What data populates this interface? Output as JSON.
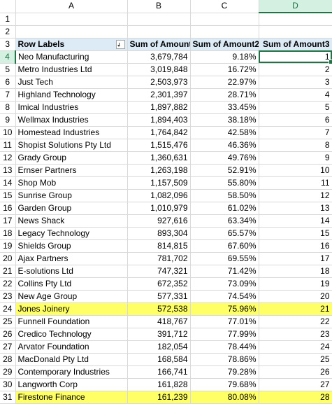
{
  "columns": [
    "A",
    "B",
    "C",
    "D"
  ],
  "selected_column": "D",
  "selected_row": 4,
  "header_row": {
    "row": 3,
    "labels": [
      "Row Labels",
      "Sum of Amount",
      "Sum of Amount2",
      "Sum of Amount3"
    ]
  },
  "rows": [
    {
      "row": 1,
      "a": "",
      "b": "",
      "c": "",
      "d": ""
    },
    {
      "row": 2,
      "a": "",
      "b": "",
      "c": "",
      "d": ""
    },
    {
      "row": 4,
      "a": "Neo Manufacturing",
      "b": "3,679,784",
      "c": "9.18%",
      "d": "1"
    },
    {
      "row": 5,
      "a": "Metro Industries Ltd",
      "b": "3,019,848",
      "c": "16.72%",
      "d": "2"
    },
    {
      "row": 6,
      "a": "Just Tech",
      "b": "2,503,973",
      "c": "22.97%",
      "d": "3"
    },
    {
      "row": 7,
      "a": "Highland Technology",
      "b": "2,301,397",
      "c": "28.71%",
      "d": "4"
    },
    {
      "row": 8,
      "a": "Imical Industries",
      "b": "1,897,882",
      "c": "33.45%",
      "d": "5"
    },
    {
      "row": 9,
      "a": "Wellmax Industries",
      "b": "1,894,403",
      "c": "38.18%",
      "d": "6"
    },
    {
      "row": 10,
      "a": "Homestead Industries",
      "b": "1,764,842",
      "c": "42.58%",
      "d": "7"
    },
    {
      "row": 11,
      "a": "Shopist Solutions Pty Ltd",
      "b": "1,515,476",
      "c": "46.36%",
      "d": "8"
    },
    {
      "row": 12,
      "a": "Grady Group",
      "b": "1,360,631",
      "c": "49.76%",
      "d": "9"
    },
    {
      "row": 13,
      "a": "Ernser Partners",
      "b": "1,263,198",
      "c": "52.91%",
      "d": "10"
    },
    {
      "row": 14,
      "a": "Shop Mob",
      "b": "1,157,509",
      "c": "55.80%",
      "d": "11"
    },
    {
      "row": 15,
      "a": "Sunrise Group",
      "b": "1,082,096",
      "c": "58.50%",
      "d": "12"
    },
    {
      "row": 16,
      "a": "Garden Group",
      "b": "1,010,979",
      "c": "61.02%",
      "d": "13"
    },
    {
      "row": 17,
      "a": "News Shack",
      "b": "927,616",
      "c": "63.34%",
      "d": "14"
    },
    {
      "row": 18,
      "a": "Legacy Technology",
      "b": "893,304",
      "c": "65.57%",
      "d": "15"
    },
    {
      "row": 19,
      "a": "Shields Group",
      "b": "814,815",
      "c": "67.60%",
      "d": "16"
    },
    {
      "row": 20,
      "a": "Ajax Partners",
      "b": "781,702",
      "c": "69.55%",
      "d": "17"
    },
    {
      "row": 21,
      "a": "E-solutions Ltd",
      "b": "747,321",
      "c": "71.42%",
      "d": "18"
    },
    {
      "row": 22,
      "a": "Collins Pty Ltd",
      "b": "672,352",
      "c": "73.09%",
      "d": "19"
    },
    {
      "row": 23,
      "a": "New Age Group",
      "b": "577,331",
      "c": "74.54%",
      "d": "20"
    },
    {
      "row": 24,
      "a": "Jones Joinery",
      "b": "572,538",
      "c": "75.96%",
      "d": "21",
      "highlight": true
    },
    {
      "row": 25,
      "a": "Funnell Foundation",
      "b": "418,767",
      "c": "77.01%",
      "d": "22"
    },
    {
      "row": 26,
      "a": "Credico Technology",
      "b": "391,712",
      "c": "77.99%",
      "d": "23"
    },
    {
      "row": 27,
      "a": "Arvator Foundation",
      "b": "182,054",
      "c": "78.44%",
      "d": "24"
    },
    {
      "row": 28,
      "a": "MacDonald Pty Ltd",
      "b": "168,584",
      "c": "78.86%",
      "d": "25"
    },
    {
      "row": 29,
      "a": "Contemporary Industries",
      "b": "166,741",
      "c": "79.28%",
      "d": "26"
    },
    {
      "row": 30,
      "a": "Langworth Corp",
      "b": "161,828",
      "c": "79.68%",
      "d": "27"
    },
    {
      "row": 31,
      "a": "Firestone Finance",
      "b": "161,239",
      "c": "80.08%",
      "d": "28",
      "highlight": true
    }
  ],
  "colors": {
    "header_fill": "#ddebf7",
    "highlight_fill": "#ffff66",
    "selection_accent": "#217346",
    "gridline": "#d9d9d9"
  },
  "icons": {
    "filter": "filter-dropdown-icon"
  }
}
